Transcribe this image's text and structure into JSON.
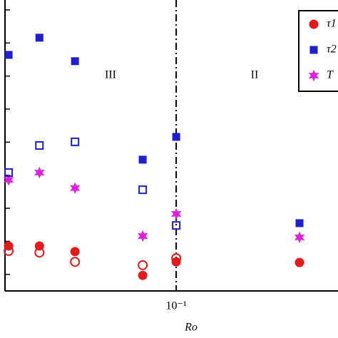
{
  "chart_data": {
    "type": "scatter",
    "x_label": "Ro",
    "xscale": "log",
    "xlim": [
      0.0206,
      0.445
    ],
    "xticks": [
      {
        "value": 0.1,
        "label": "10⁻¹"
      }
    ],
    "ylim": [
      0.5,
      9.3
    ],
    "yticks": [
      1,
      2,
      3,
      4,
      5,
      6,
      7,
      8,
      9
    ],
    "vline": 0.1,
    "legend": "upper right",
    "annotations": [
      "III",
      "II"
    ],
    "series": [
      {
        "name": "τ1",
        "color": "#e41a1c",
        "marker": "circle",
        "filled": true,
        "x": [
          0.0213,
          0.0283,
          0.0393,
          0.0734,
          0.1,
          0.312
        ],
        "values": [
          1.86,
          1.86,
          1.69,
          0.97,
          1.38,
          1.36
        ]
      },
      {
        "name": "τ2",
        "color": "#1f1fd0",
        "marker": "square",
        "filled": true,
        "x": [
          0.0213,
          0.0283,
          0.0393,
          0.0734,
          0.1,
          0.312
        ],
        "values": [
          7.64,
          8.16,
          7.45,
          4.47,
          5.16,
          2.55
        ]
      },
      {
        "name": "T",
        "color": "#e020e0",
        "marker": "star",
        "filled": true,
        "x": [
          0.0213,
          0.0283,
          0.0393,
          0.0734,
          0.1,
          0.312
        ],
        "values": [
          3.86,
          4.08,
          3.61,
          2.16,
          2.83,
          2.12
        ]
      },
      {
        "color": "#e41a1c",
        "marker": "circle",
        "filled": false,
        "x": [
          0.0213,
          0.0283,
          0.0393,
          0.0734,
          0.1
        ],
        "values": [
          1.71,
          1.66,
          1.38,
          1.28,
          1.49
        ]
      },
      {
        "color": "#1f1fd0",
        "marker": "square",
        "filled": false,
        "x": [
          0.0213,
          0.0283,
          0.0393,
          0.0734,
          0.1
        ],
        "values": [
          4.08,
          4.9,
          5.01,
          3.56,
          2.48
        ]
      }
    ]
  }
}
